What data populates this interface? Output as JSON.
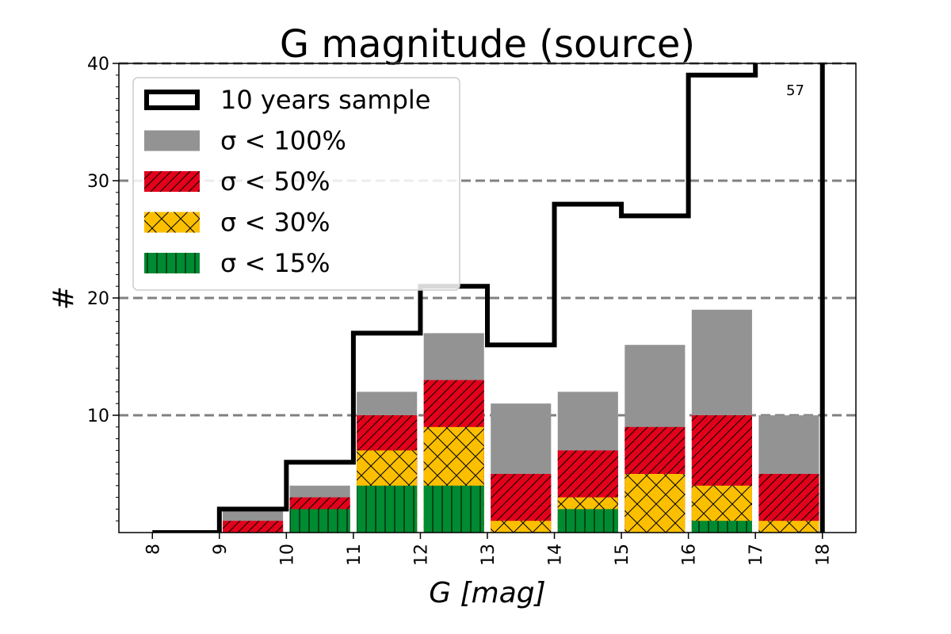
{
  "chart_data": {
    "type": "bar",
    "title": "G magnitude (source)",
    "xlabel": "G [mag]",
    "ylabel": "#",
    "xlim": [
      7.5,
      18.5
    ],
    "ylim": [
      0,
      40
    ],
    "x_ticks": [
      8,
      9,
      10,
      11,
      12,
      13,
      14,
      15,
      16,
      17,
      18
    ],
    "x_tick_labels": [
      "8",
      "9",
      "10",
      "11",
      "12",
      "13",
      "14",
      "15",
      "16",
      "17",
      "18"
    ],
    "y_ticks": [
      10,
      20,
      30,
      40
    ],
    "y_tick_labels": [
      "10",
      "20",
      "30",
      "40"
    ],
    "grid": "horizontal dashed at 10, 20, 30, 40",
    "legend_position": "top-left",
    "bin_edges": [
      9,
      10,
      11,
      12,
      13,
      14,
      15,
      16,
      17,
      18
    ],
    "bin_starts": [
      9,
      10,
      11,
      12,
      13,
      14,
      15,
      16,
      17
    ],
    "series": [
      {
        "name": "σ < 100%",
        "key": "s100",
        "color": "#939393",
        "hatch": "none",
        "values": [
          2,
          4,
          12,
          17,
          11,
          12,
          16,
          19,
          10
        ]
      },
      {
        "name": "σ < 50%",
        "key": "s50",
        "color": "#e3001b",
        "hatch": "diag",
        "values": [
          1,
          3,
          10,
          13,
          5,
          7,
          9,
          10,
          5
        ]
      },
      {
        "name": "σ < 30%",
        "key": "s30",
        "color": "#fbbf00",
        "hatch": "cross",
        "values": [
          0,
          0,
          7,
          9,
          1,
          3,
          5,
          4,
          1
        ]
      },
      {
        "name": "σ < 15%",
        "key": "s15",
        "color": "#008a31",
        "hatch": "vert",
        "values": [
          0,
          2,
          4,
          4,
          0,
          2,
          0,
          1,
          0
        ]
      }
    ],
    "step_line": {
      "name": "10 years sample",
      "edges": [
        8,
        9,
        10,
        11,
        12,
        13,
        14,
        15,
        16,
        17,
        18
      ],
      "values": [
        0,
        2,
        6,
        17,
        21,
        16,
        28,
        27,
        39,
        57
      ]
    },
    "annotations": [
      {
        "text": "57",
        "x": 17.5,
        "y": 37.3
      }
    ]
  },
  "legend": [
    {
      "label": "10 years sample",
      "kind": "step"
    },
    {
      "label": "σ < 100%",
      "kind": "s100"
    },
    {
      "label": "σ < 50%",
      "kind": "s50"
    },
    {
      "label": "σ < 30%",
      "kind": "s30"
    },
    {
      "label": "σ < 15%",
      "kind": "s15"
    }
  ]
}
